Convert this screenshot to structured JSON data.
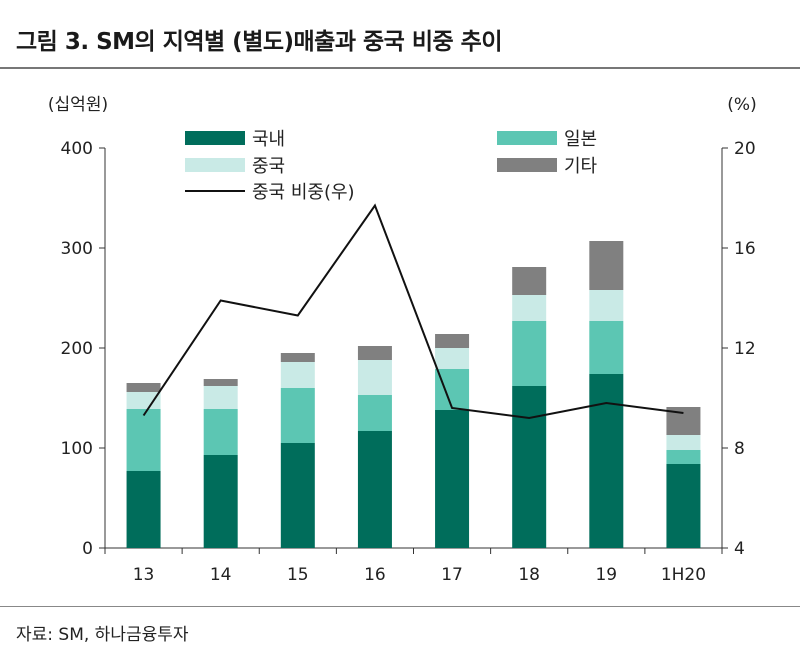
{
  "title": "그림 3. SM의 지역별 (별도)매출과 중국 비중 추이",
  "source": "자료: SM, 하나금융투자",
  "colors": {
    "domestic": "#006d5b",
    "japan": "#5cc6b3",
    "china": "#c9eae6",
    "other": "#808080",
    "line": "#111111"
  },
  "chart_data": {
    "type": "bar",
    "stacked": true,
    "categories": [
      "13",
      "14",
      "15",
      "16",
      "17",
      "18",
      "19",
      "1H20"
    ],
    "series": [
      {
        "name": "국내",
        "color_key": "domestic",
        "values": [
          77,
          93,
          105,
          117,
          138,
          162,
          174,
          84
        ]
      },
      {
        "name": "일본",
        "color_key": "japan",
        "values": [
          62,
          46,
          55,
          36,
          41,
          65,
          53,
          14
        ]
      },
      {
        "name": "중국",
        "color_key": "china",
        "values": [
          17,
          23,
          26,
          35,
          21,
          26,
          31,
          15
        ]
      },
      {
        "name": "기타",
        "color_key": "other",
        "values": [
          9,
          7,
          9,
          14,
          14,
          28,
          49,
          28
        ]
      }
    ],
    "line_series": {
      "name": "중국 비중(우)",
      "axis": "right",
      "values": [
        9.3,
        13.9,
        13.3,
        17.7,
        9.6,
        9.2,
        9.8,
        9.4
      ]
    },
    "y_left": {
      "unit": "(십억원)",
      "min": 0,
      "max": 400,
      "ticks": [
        0,
        100,
        200,
        300,
        400
      ]
    },
    "y_right": {
      "unit": "(%)",
      "min": 4,
      "max": 20,
      "ticks": [
        4,
        8,
        12,
        16,
        20
      ]
    },
    "grid": false,
    "legend_position": "top"
  }
}
